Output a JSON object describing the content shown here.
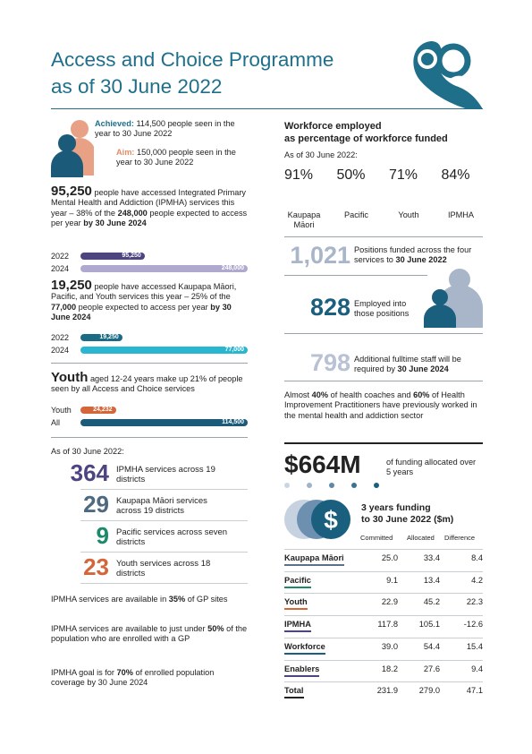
{
  "header": {
    "title": [
      "Access and Choice Programme",
      "as of 30 June 2022"
    ]
  },
  "achievement": {
    "achieved_label": "Achieved:",
    "achieved_text": "114,500 people seen in the year to 30 June 2022",
    "aim_label": "Aim:",
    "aim_text": "150,000 people seen in the year to 30 June 2022"
  },
  "ipmha_access": {
    "lead": "95,250",
    "text": "people have accessed Integrated Primary Mental Health and Addiction (IPMHA) services this year – 38% of the",
    "target": "248,000",
    "text2": "people expected to access per year",
    "deadline": "by 30 June 2024",
    "bars": [
      {
        "year": "2022",
        "value": 95250,
        "label": "95,250"
      },
      {
        "year": "2024",
        "value": 248000,
        "label": "248,000"
      }
    ]
  },
  "kmpy_access": {
    "lead": "19,250",
    "text": "people have accessed Kaupapa Māori, Pacific, and Youth services this year – 25% of the",
    "target": "77,000",
    "text2": "people expected to access per year",
    "deadline": "by 30 June 2024",
    "bars": [
      {
        "year": "2022",
        "value": 19250,
        "label": "19,250"
      },
      {
        "year": "2024",
        "value": 77000,
        "label": "77,000"
      }
    ]
  },
  "youth": {
    "lead": "Youth",
    "text": "aged 12-24 years make up 21% of people seen by all Access and Choice services",
    "bars": [
      {
        "group": "Youth",
        "value": 24232,
        "label": "24,232"
      },
      {
        "group": "All",
        "value": 114500,
        "label": "114,500"
      }
    ]
  },
  "services": {
    "as_of": "As of 30 June 2022:",
    "items": [
      {
        "number": "364",
        "text": "IPMHA services across 19 districts"
      },
      {
        "number": "29",
        "text": "Kaupapa Māori services across 19 districts"
      },
      {
        "number": "9",
        "text": "Pacific services across seven districts"
      },
      {
        "number": "23",
        "text": "Youth services across 18 districts"
      }
    ]
  },
  "coverage": [
    {
      "before": "IPMHA services are available in",
      "highlight": "35%",
      "after": "of GP sites"
    },
    {
      "before": "IPMHA services are available to just under",
      "highlight": "50%",
      "after": "of the population who are enrolled with a GP"
    },
    {
      "before": "IPMHA goal is for",
      "highlight": "70%",
      "after": "of enrolled population coverage by 30 June 2024"
    }
  ],
  "workforce": {
    "title": [
      "Workforce employed",
      "as percentage of workforce funded"
    ],
    "as_of": "As of 30 June 2022:",
    "donuts": [
      {
        "name": "Kaupapa Māori",
        "value": 91,
        "label": "91%"
      },
      {
        "name": "Pacific",
        "value": 50,
        "label": "50%"
      },
      {
        "name": "Youth",
        "value": 71,
        "label": "71%"
      },
      {
        "name": "IPMHA",
        "value": 84,
        "label": "84%"
      }
    ]
  },
  "positions": {
    "funded": {
      "number": "1,021",
      "text": "Positions funded across the four services to",
      "bold": "30 June 2022"
    },
    "employed": {
      "number": "828",
      "text": "Employed into those positions"
    },
    "required": {
      "number": "798",
      "text": "Additional fulltime staff will be required by",
      "bold": "30 June 2024"
    }
  },
  "experience": {
    "parts": [
      "Almost",
      "40%",
      "of health coaches and",
      "60%",
      "of Health Improvement Practitioners have previously worked in the mental health and addiction sector"
    ]
  },
  "funding": {
    "total": "$664M",
    "total_text": "of funding allocated over 5 years",
    "table_title": [
      "3 years funding",
      "to 30 June 2022 ($m)"
    ],
    "columns": [
      "Committed",
      "Allocated",
      "Difference"
    ],
    "rows": [
      [
        "Kaupapa Māori",
        "25.0",
        "33.4",
        "8.4"
      ],
      [
        "Pacific",
        "9.1",
        "13.4",
        "4.2"
      ],
      [
        "Youth",
        "22.9",
        "45.2",
        "22.3"
      ],
      [
        "IPMHA",
        "117.8",
        "105.1",
        "-12.6"
      ],
      [
        "Workforce",
        "39.0",
        "54.4",
        "15.4"
      ],
      [
        "Enablers",
        "18.2",
        "27.6",
        "9.4"
      ],
      [
        "Total",
        "231.9",
        "279.0",
        "47.1"
      ]
    ]
  }
}
